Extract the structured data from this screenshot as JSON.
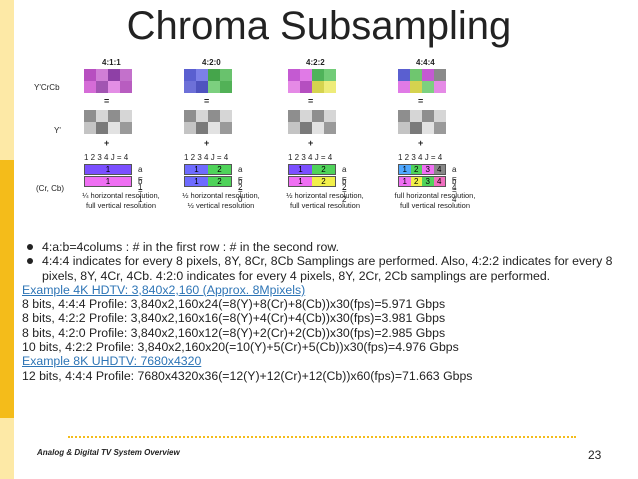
{
  "slide": {
    "title": "Chroma Subsampling",
    "footer": "Analog & Digital TV System Overview",
    "page_number": "23"
  },
  "figure": {
    "row_labels": [
      "Y'CrCb",
      "Y'",
      "(Cr, Cb)"
    ],
    "equals_sign": "=",
    "plus_sign": "+",
    "schemes": [
      {
        "name": "4:1:1",
        "nums": "1  2  3  4  J = 4",
        "a_text": "a = 1",
        "b_text": "b = 1",
        "top_cells": [
          "1"
        ],
        "bottom_cells": [
          "1"
        ],
        "caption1": "¼ horizontal resolution,",
        "caption2": "full vertical resolution"
      },
      {
        "name": "4:2:0",
        "nums": "1  2  3  4  J = 4",
        "a_text": "a = 2",
        "b_text": "b = 0",
        "top_cells": [
          "1",
          "2"
        ],
        "bottom_cells": [
          "1",
          "2"
        ],
        "caption1": "½ horizontal resolution,",
        "caption2": "½ vertical resolution"
      },
      {
        "name": "4:2:2",
        "nums": "1  2  3  4  J = 4",
        "a_text": "a = 2",
        "b_text": "b = 2",
        "top_cells": [
          "1",
          "2"
        ],
        "bottom_cells": [
          "1",
          "2"
        ],
        "caption1": "½ horizontal resolution,",
        "caption2": "full vertical resolution"
      },
      {
        "name": "4:4:4",
        "nums": "1  2  3  4  J = 4",
        "a_text": "a = 4",
        "b_text": "b = 4",
        "top_cells": [
          "1",
          "2",
          "3",
          "4"
        ],
        "bottom_cells": [
          "1",
          "2",
          "3",
          "4"
        ],
        "caption1": "full horizontal resolution,",
        "caption2": "full vertical resolution"
      }
    ]
  },
  "body": {
    "bullets": [
      "4:a:b=4colums : # in the first row : # in the second row.",
      "4:4:4 indicates for every 8 pixels, 8Y, 8Cr, 8Cb Samplings are performed. Also, 4:2:2 indicates for every 8 pixels, 8Y, 4Cr, 4Cb. 4:2:0 indicates for every 4 pixels, 8Y, 2Cr, 2Cb samplings are performed."
    ],
    "example_4k": "Example 4K HDTV: 3,840x2,160 (Approx. 8Mpixels)",
    "lines_4k": [
      "8 bits, 4:4:4 Profile: 3,840x2,160x24(=8(Y)+8(Cr)+8(Cb))x30(fps)=5.971 Gbps",
      "8 bits, 4:2:2 Profile: 3,840x2,160x16(=8(Y)+4(Cr)+4(Cb))x30(fps)=3.981 Gbps",
      "8 bits, 4:2:0 Profile: 3,840x2,160x12(=8(Y)+2(Cr)+2(Cb))x30(fps)=2.985 Gbps",
      "10 bits, 4:2:2 Profile: 3,840x2,160x20(=10(Y)+5(Cr)+5(Cb))x30(fps)=4.976 Gbps"
    ],
    "example_8k": "Example 8K UHDTV: 7680x4320",
    "lines_8k": [
      "12 bits, 4:4:4 Profile: 7680x4320x36(=12(Y)+12(Cr)+12(Cb))x60(fps)=71.663 Gbps"
    ]
  },
  "colors": {
    "accent_yellow": "#f4bc1a",
    "link_blue": "#2e75b6"
  }
}
